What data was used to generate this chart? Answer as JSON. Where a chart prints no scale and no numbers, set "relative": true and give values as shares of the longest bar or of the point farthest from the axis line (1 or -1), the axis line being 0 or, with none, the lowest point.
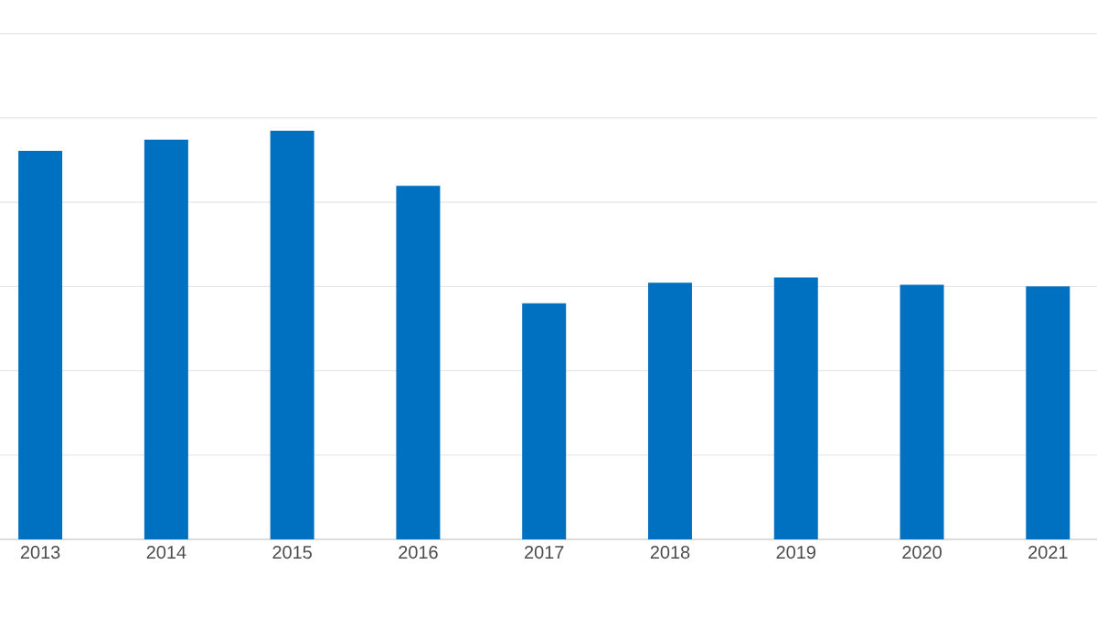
{
  "chart_data": {
    "type": "bar",
    "relative": true,
    "categories": [
      "2013",
      "2014",
      "2015",
      "2016",
      "2017",
      "2018",
      "2019",
      "2020",
      "2021"
    ],
    "values": [
      0.951,
      0.978,
      1,
      0.865,
      0.578,
      0.628,
      0.641,
      0.623,
      0.619
    ],
    "color": "#0070c0",
    "grid": "y"
  }
}
